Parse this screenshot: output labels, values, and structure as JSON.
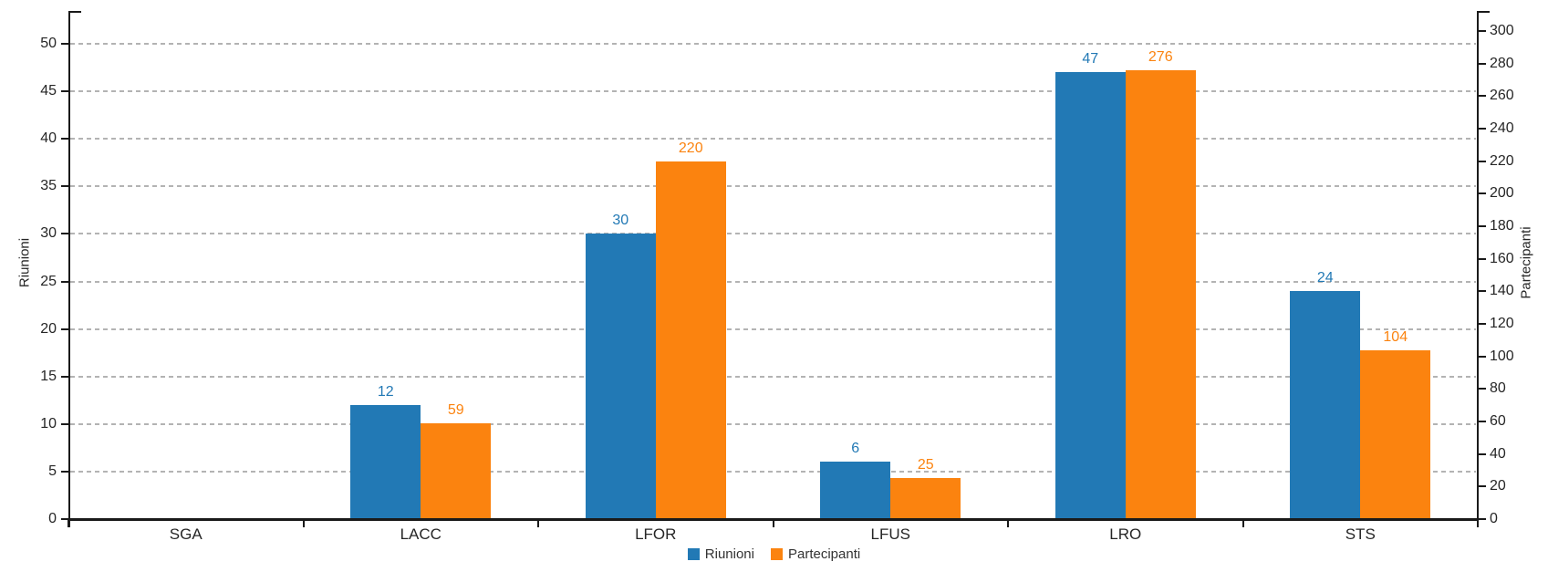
{
  "chart_data": {
    "type": "bar",
    "title": "",
    "categories": [
      "SGA",
      "LACC",
      "LFOR",
      "LFUS",
      "LRO",
      "STS"
    ],
    "series": [
      {
        "name": "Riunioni",
        "axis": "left",
        "color": "#2279B5",
        "values": [
          0,
          12,
          30,
          6,
          47,
          24
        ]
      },
      {
        "name": "Partecipanti",
        "axis": "right",
        "color": "#FB830F",
        "values": [
          0,
          59,
          220,
          25,
          276,
          104
        ]
      }
    ],
    "left_axis": {
      "label": "Riunioni",
      "min": 0,
      "max": 50,
      "step": 5,
      "ticks": [
        0,
        5,
        10,
        15,
        20,
        25,
        30,
        35,
        40,
        45,
        50
      ]
    },
    "right_axis": {
      "label": "Partecipanti",
      "min": 0,
      "max": 300,
      "step": 20,
      "ticks": [
        0,
        20,
        40,
        60,
        80,
        100,
        120,
        140,
        160,
        180,
        200,
        220,
        240,
        260,
        280,
        300
      ]
    },
    "grid": {
      "horizontal": true,
      "style": "dashed",
      "color": "#B3B3B3"
    },
    "legend": {
      "position": "bottom-center",
      "entries": [
        {
          "label": "Riunioni",
          "color": "#2279B5"
        },
        {
          "label": "Partecipanti",
          "color": "#FB830F"
        }
      ]
    },
    "data_labels_shown": true
  },
  "colors": {
    "background": "#FFFFFF",
    "axis_line": "#1A1A1A",
    "tick_text": "#262626",
    "grid_line": "#B3B3B3"
  }
}
